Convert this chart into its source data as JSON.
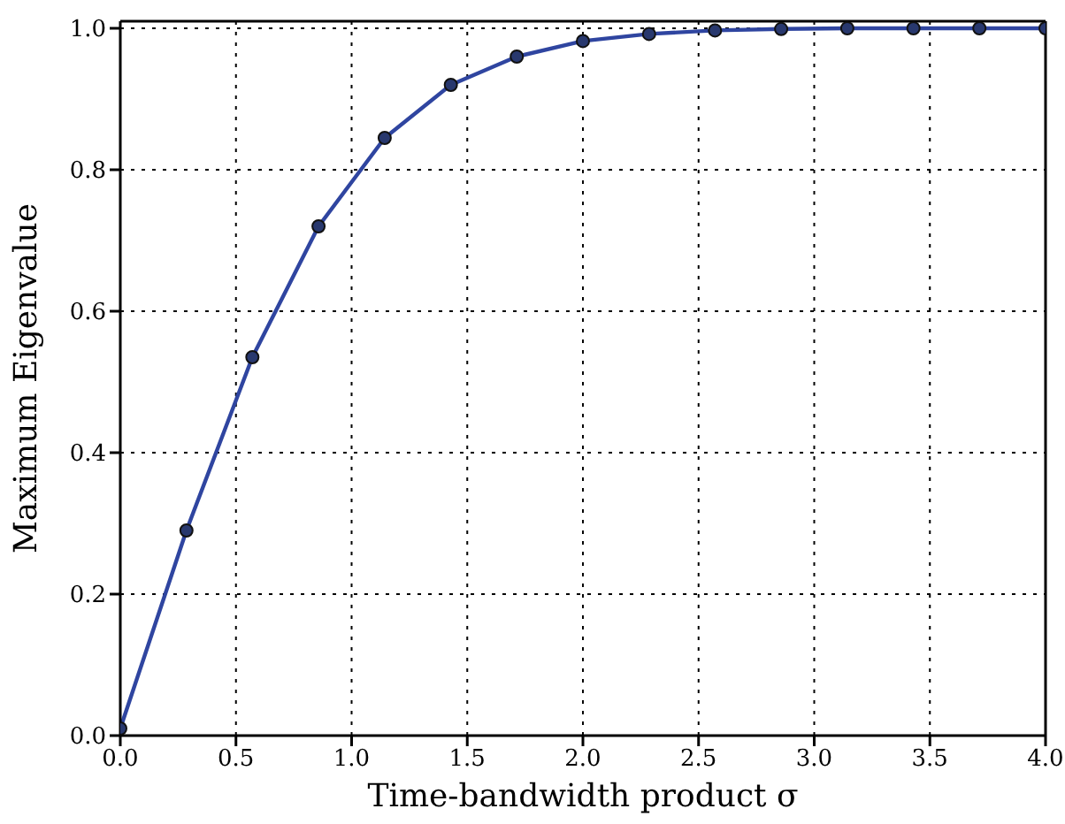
{
  "chart_data": {
    "type": "line",
    "xlabel": "Time-bandwidth product σ",
    "ylabel": "Maximum Eigenvalue",
    "x": [
      0,
      0.286,
      0.571,
      0.857,
      1.143,
      1.429,
      1.714,
      2.0,
      2.286,
      2.571,
      2.857,
      3.143,
      3.429,
      3.714,
      4.0
    ],
    "series": [
      {
        "color": "#2f45a0",
        "values": [
          0.01,
          0.29,
          0.535,
          0.72,
          0.845,
          0.92,
          0.96,
          0.982,
          0.992,
          0.997,
          0.999,
          1.0,
          1.0,
          1.0,
          1.0
        ]
      }
    ],
    "xlim": [
      0,
      4
    ],
    "ylim": [
      0,
      1.01
    ],
    "xticks": [
      {
        "value": 0,
        "label": "0.0"
      },
      {
        "value": 0.5,
        "label": "0.5"
      },
      {
        "value": 1,
        "label": "1.0"
      },
      {
        "value": 1.5,
        "label": "1.5"
      },
      {
        "value": 2,
        "label": "2.0"
      },
      {
        "value": 2.5,
        "label": "2.5"
      },
      {
        "value": 3,
        "label": "3.0"
      },
      {
        "value": 3.5,
        "label": "3.5"
      },
      {
        "value": 4,
        "label": "4.0"
      }
    ],
    "yticks": [
      {
        "value": 0,
        "label": "0.0"
      },
      {
        "value": 0.2,
        "label": "0.2"
      },
      {
        "value": 0.4,
        "label": "0.4"
      },
      {
        "value": 0.6,
        "label": "0.6"
      },
      {
        "value": 0.8,
        "label": "0.8"
      },
      {
        "value": 1,
        "label": "1.0"
      }
    ],
    "grid": true,
    "marker": "circle",
    "line_style": "solid"
  }
}
